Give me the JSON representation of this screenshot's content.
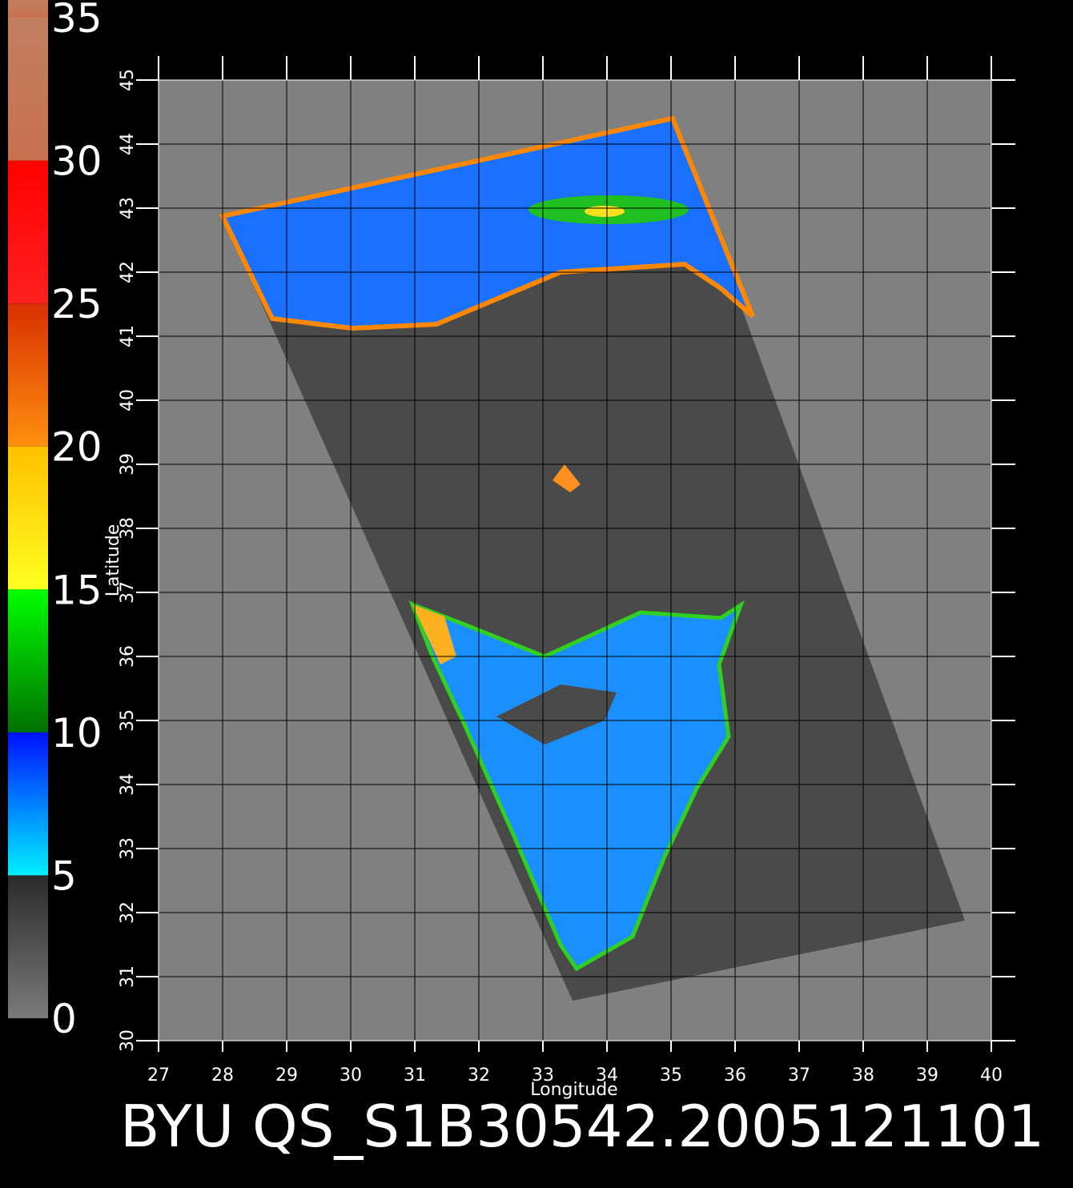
{
  "title": "BYU QS_S1B30542.2005121101",
  "colorbar": {
    "lim": [
      0,
      35
    ],
    "ticks": [
      0,
      5,
      10,
      15,
      20,
      25,
      30,
      35
    ]
  },
  "map": {
    "xlabel": "Longitude",
    "ylabel": "Latitude",
    "xlim": [
      27,
      40
    ],
    "ylim": [
      30,
      45
    ],
    "xticks": [
      27,
      28,
      29,
      30,
      31,
      32,
      33,
      34,
      35,
      36,
      37,
      38,
      39,
      40
    ],
    "yticks": [
      30,
      31,
      32,
      33,
      34,
      35,
      36,
      37,
      38,
      39,
      40,
      41,
      42,
      43,
      44,
      45
    ],
    "grid": true
  }
}
